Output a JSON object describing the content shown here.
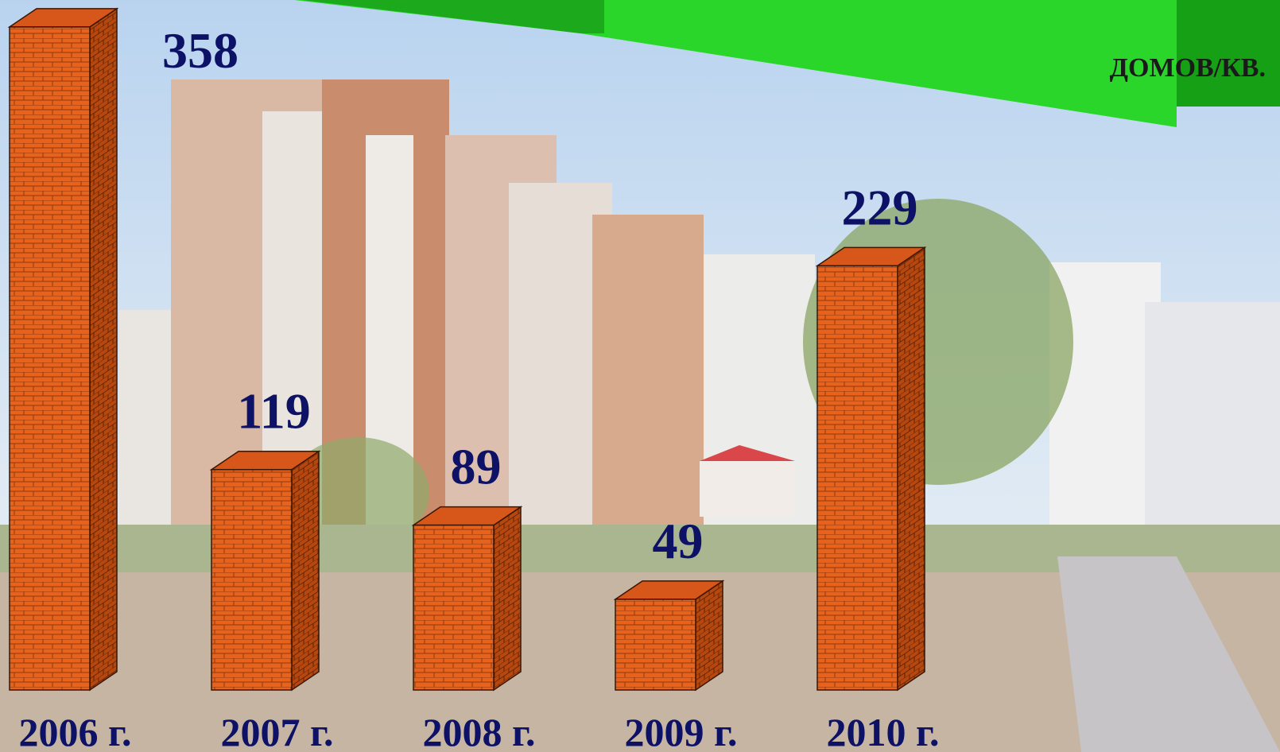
{
  "chart_data": {
    "type": "bar",
    "unit_label": "ДОМОВ/КВ.",
    "categories": [
      "2006 г.",
      "2007 г.",
      "2008 г.",
      "2009 г.",
      "2010 г."
    ],
    "values": [
      358,
      119,
      89,
      49,
      229
    ],
    "color": "#e8621c"
  }
}
